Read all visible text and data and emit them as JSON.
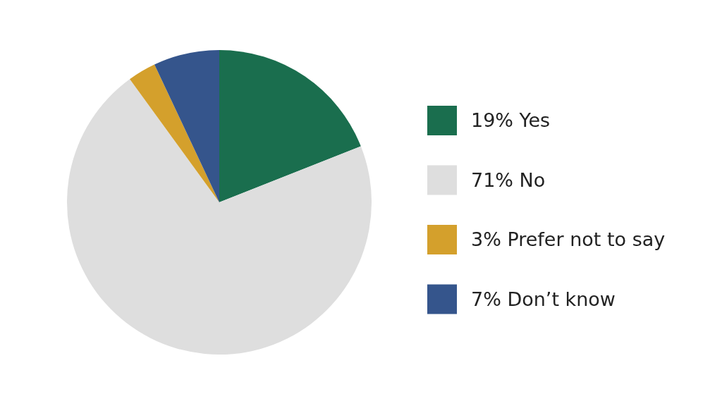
{
  "chart_data": {
    "type": "pie",
    "categories": [
      "19% Yes",
      "71% No",
      "3% Prefer not to say",
      "7% Don’t know"
    ],
    "values": [
      19,
      71,
      3,
      7
    ],
    "colors": [
      "#1a6e4e",
      "#dedede",
      "#d4a02c",
      "#35558c"
    ],
    "legend": "right"
  }
}
